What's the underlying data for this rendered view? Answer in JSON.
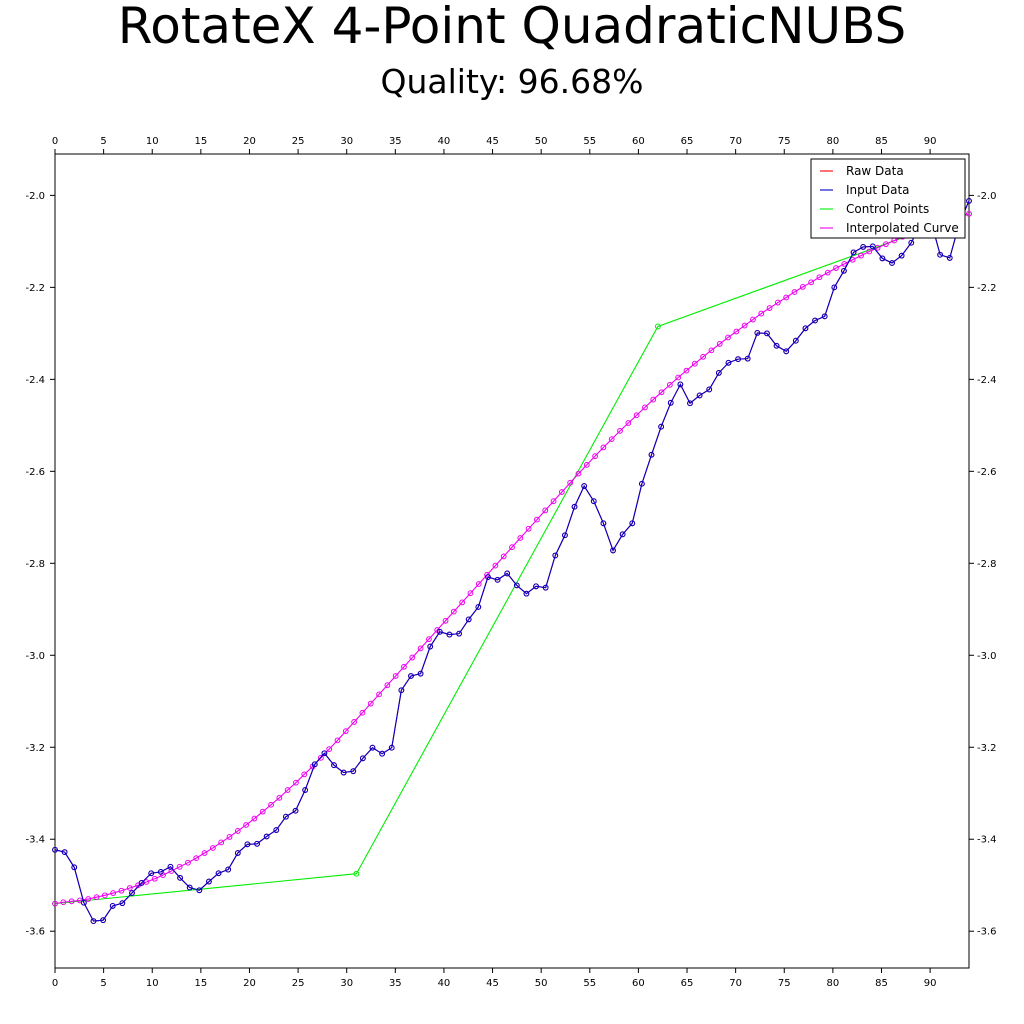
{
  "title": "RotateX 4-Point QuadraticNUBS",
  "subtitle": "Quality: 96.68%",
  "chart_data": {
    "type": "line",
    "title": "RotateX 4-Point QuadraticNUBS",
    "subtitle": "Quality: 96.68%",
    "xlabel": "",
    "ylabel": "",
    "xlim": [
      0,
      94
    ],
    "ylim": [
      -3.68,
      -1.91
    ],
    "x_ticks": [
      0,
      5,
      10,
      15,
      20,
      25,
      30,
      35,
      40,
      45,
      50,
      55,
      60,
      65,
      70,
      75,
      80,
      85,
      90
    ],
    "y_ticks": [
      -2.0,
      -2.2,
      -2.4,
      -2.6,
      -2.8,
      -3.0,
      -3.2,
      -3.4,
      -3.6
    ],
    "y_tick_labels": [
      "-2.0",
      "-2.2",
      "-2.4",
      "-2.6",
      "-2.8",
      "-3.0",
      "-3.2",
      "-3.4",
      "-3.6"
    ],
    "grid": false,
    "legend_position": "top-right",
    "series": [
      {
        "name": "Raw Data",
        "color": "#ff0000",
        "markers": true,
        "y": [
          -3.423,
          -3.428,
          -3.461,
          -3.538,
          -3.578,
          -3.576,
          -3.545,
          -3.539,
          -3.517,
          -3.495,
          -3.474,
          -3.471,
          -3.46,
          -3.484,
          -3.505,
          -3.511,
          -3.492,
          -3.474,
          -3.466,
          -3.43,
          -3.411,
          -3.41,
          -3.394,
          -3.38,
          -3.351,
          -3.338,
          -3.293,
          -3.237,
          -3.213,
          -3.239,
          -3.255,
          -3.252,
          -3.224,
          -3.201,
          -3.214,
          -3.201,
          -3.076,
          -3.045,
          -3.04,
          -2.981,
          -2.949,
          -2.955,
          -2.953,
          -2.922,
          -2.895,
          -2.83,
          -2.836,
          -2.822,
          -2.848,
          -2.866,
          -2.85,
          -2.853,
          -2.783,
          -2.739,
          -2.677,
          -2.632,
          -2.665,
          -2.713,
          -2.772,
          -2.737,
          -2.713,
          -2.627,
          -2.564,
          -2.503,
          -2.451,
          -2.411,
          -2.452,
          -2.435,
          -2.422,
          -2.386,
          -2.364,
          -2.356,
          -2.355,
          -2.299,
          -2.3,
          -2.327,
          -2.339,
          -2.316,
          -2.289,
          -2.272,
          -2.263,
          -2.2,
          -2.164,
          -2.124,
          -2.112,
          -2.111,
          -2.137,
          -2.147,
          -2.131,
          -2.103,
          -2.061,
          -2.052,
          -2.129,
          -2.136,
          -2.06,
          -2.012
        ]
      },
      {
        "name": "Input Data",
        "color": "#0000cc",
        "markers": true,
        "y": [
          -3.423,
          -3.428,
          -3.461,
          -3.538,
          -3.578,
          -3.576,
          -3.545,
          -3.539,
          -3.517,
          -3.495,
          -3.474,
          -3.471,
          -3.46,
          -3.484,
          -3.505,
          -3.511,
          -3.492,
          -3.474,
          -3.466,
          -3.43,
          -3.411,
          -3.41,
          -3.394,
          -3.38,
          -3.351,
          -3.338,
          -3.293,
          -3.237,
          -3.213,
          -3.239,
          -3.255,
          -3.252,
          -3.224,
          -3.201,
          -3.214,
          -3.201,
          -3.076,
          -3.045,
          -3.04,
          -2.981,
          -2.949,
          -2.955,
          -2.953,
          -2.922,
          -2.895,
          -2.83,
          -2.836,
          -2.822,
          -2.848,
          -2.866,
          -2.85,
          -2.853,
          -2.783,
          -2.739,
          -2.677,
          -2.632,
          -2.665,
          -2.713,
          -2.772,
          -2.737,
          -2.713,
          -2.627,
          -2.564,
          -2.503,
          -2.451,
          -2.411,
          -2.452,
          -2.435,
          -2.422,
          -2.386,
          -2.364,
          -2.356,
          -2.355,
          -2.299,
          -2.3,
          -2.327,
          -2.339,
          -2.316,
          -2.289,
          -2.272,
          -2.263,
          -2.2,
          -2.164,
          -2.124,
          -2.112,
          -2.111,
          -2.137,
          -2.147,
          -2.131,
          -2.103,
          -2.061,
          -2.052,
          -2.129,
          -2.136,
          -2.06,
          -2.012
        ]
      },
      {
        "name": "Control Points",
        "color": "#00ee00",
        "markers": true,
        "points": [
          [
            0,
            -3.54
          ],
          [
            31,
            -3.475
          ],
          [
            62,
            -2.285
          ],
          [
            94,
            -2.04
          ]
        ]
      },
      {
        "name": "Interpolated Curve",
        "color": "#ee00ee",
        "markers": true,
        "y": [
          -3.54,
          -3.537,
          -3.535,
          -3.533,
          -3.53,
          -3.526,
          -3.522,
          -3.517,
          -3.512,
          -3.506,
          -3.5,
          -3.493,
          -3.486,
          -3.478,
          -3.469,
          -3.46,
          -3.451,
          -3.441,
          -3.43,
          -3.419,
          -3.407,
          -3.395,
          -3.382,
          -3.369,
          -3.355,
          -3.34,
          -3.325,
          -3.31,
          -3.293,
          -3.277,
          -3.259,
          -3.242,
          -3.223,
          -3.204,
          -3.185,
          -3.165,
          -3.145,
          -3.125,
          -3.105,
          -3.085,
          -3.065,
          -3.045,
          -3.025,
          -3.005,
          -2.985,
          -2.965,
          -2.945,
          -2.925,
          -2.905,
          -2.885,
          -2.865,
          -2.845,
          -2.825,
          -2.805,
          -2.785,
          -2.765,
          -2.745,
          -2.725,
          -2.705,
          -2.685,
          -2.665,
          -2.645,
          -2.625,
          -2.605,
          -2.586,
          -2.567,
          -2.548,
          -2.53,
          -2.512,
          -2.495,
          -2.478,
          -2.461,
          -2.444,
          -2.428,
          -2.412,
          -2.396,
          -2.381,
          -2.366,
          -2.351,
          -2.337,
          -2.323,
          -2.309,
          -2.296,
          -2.283,
          -2.27,
          -2.257,
          -2.245,
          -2.233,
          -2.222,
          -2.21,
          -2.199,
          -2.189,
          -2.178,
          -2.168,
          -2.158,
          -2.149,
          -2.14,
          -2.131,
          -2.122,
          -2.114,
          -2.106,
          -2.098,
          -2.09,
          -2.083,
          -2.076,
          -2.069,
          -2.062,
          -2.056,
          -2.05,
          -2.044,
          -2.04
        ]
      }
    ]
  }
}
